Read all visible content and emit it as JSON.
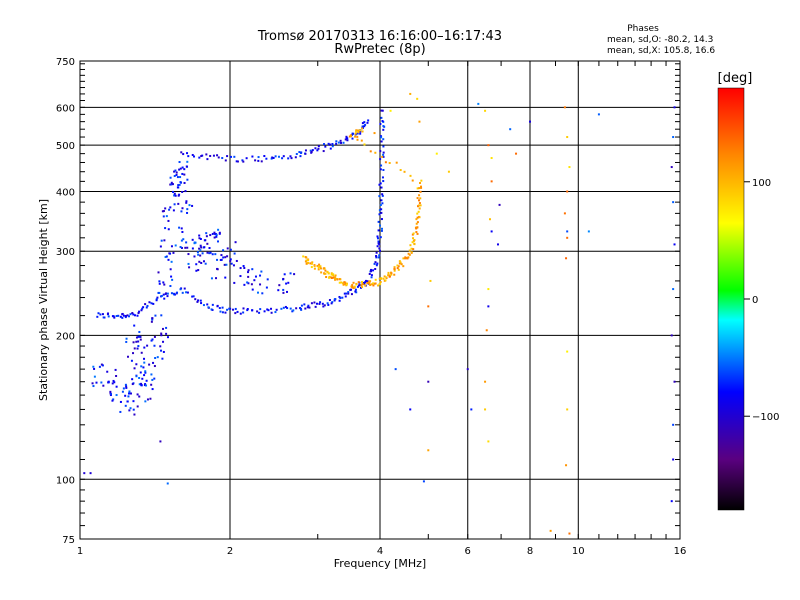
{
  "chart_data": {
    "type": "scatter",
    "title_line1": "Tromsø 20170313 16:16:00–16:17:43",
    "title_line2": "RwPretec (8p)",
    "xlabel": "Frequency [MHz]",
    "ylabel": "Stationary phase Virtual Height [km]",
    "x_scale": "log",
    "y_scale": "log",
    "xlim": [
      1,
      16
    ],
    "ylim": [
      75,
      750
    ],
    "x_ticks": [
      1,
      2,
      4,
      6,
      8,
      10,
      16
    ],
    "x_tick_labels": [
      "1",
      "2",
      "4",
      "6",
      "8",
      "10",
      "16"
    ],
    "y_ticks": [
      75,
      100,
      200,
      300,
      400,
      500,
      600,
      750
    ],
    "y_tick_labels": [
      "75",
      "100",
      "200",
      "300",
      "400",
      "500",
      "600",
      "750"
    ],
    "grid": true,
    "stats": {
      "heading": "Phases",
      "o_line": "mean, sd,O: -80.2, 14.3",
      "x_line": "mean, sd,X: 105.8, 16.6"
    },
    "colorbar": {
      "label": "[deg]",
      "range": [
        -180,
        180
      ],
      "ticks": [
        100,
        0,
        -100
      ],
      "tick_labels": [
        "100",
        "0",
        "−100"
      ]
    },
    "series": [
      {
        "mode": "O",
        "phase_deg": -80.2,
        "trace": [
          {
            "x": 1.08,
            "y": 220
          },
          {
            "x": 1.2,
            "y": 220
          },
          {
            "x": 1.3,
            "y": 222
          },
          {
            "x": 1.45,
            "y": 240
          },
          {
            "x": 1.6,
            "y": 250
          },
          {
            "x": 1.8,
            "y": 230
          },
          {
            "x": 2.0,
            "y": 225
          },
          {
            "x": 2.3,
            "y": 225
          },
          {
            "x": 2.7,
            "y": 228
          },
          {
            "x": 3.0,
            "y": 232
          },
          {
            "x": 3.3,
            "y": 238
          },
          {
            "x": 3.6,
            "y": 250
          },
          {
            "x": 3.8,
            "y": 262
          },
          {
            "x": 3.95,
            "y": 290
          },
          {
            "x": 4.0,
            "y": 330
          },
          {
            "x": 4.02,
            "y": 400
          },
          {
            "x": 4.04,
            "y": 500
          },
          {
            "x": 4.05,
            "y": 600
          },
          {
            "x": 1.6,
            "y": 480
          },
          {
            "x": 1.9,
            "y": 470
          },
          {
            "x": 2.3,
            "y": 468
          },
          {
            "x": 2.7,
            "y": 475
          },
          {
            "x": 3.0,
            "y": 490
          },
          {
            "x": 3.3,
            "y": 505
          },
          {
            "x": 3.6,
            "y": 530
          },
          {
            "x": 3.8,
            "y": 560
          }
        ],
        "cloud": [
          {
            "x": 1.28,
            "y": 200
          },
          {
            "x": 1.3,
            "y": 180
          },
          {
            "x": 1.32,
            "y": 160
          },
          {
            "x": 1.35,
            "y": 150
          },
          {
            "x": 1.38,
            "y": 170
          },
          {
            "x": 1.42,
            "y": 190
          },
          {
            "x": 1.45,
            "y": 210
          },
          {
            "x": 1.48,
            "y": 260
          },
          {
            "x": 1.5,
            "y": 300
          },
          {
            "x": 1.52,
            "y": 350
          },
          {
            "x": 1.55,
            "y": 400
          },
          {
            "x": 1.58,
            "y": 420
          },
          {
            "x": 1.6,
            "y": 440
          },
          {
            "x": 1.62,
            "y": 380
          },
          {
            "x": 1.65,
            "y": 320
          },
          {
            "x": 1.7,
            "y": 290
          },
          {
            "x": 1.75,
            "y": 300
          },
          {
            "x": 1.8,
            "y": 310
          },
          {
            "x": 1.9,
            "y": 280
          },
          {
            "x": 2.1,
            "y": 270
          },
          {
            "x": 2.3,
            "y": 260
          },
          {
            "x": 2.6,
            "y": 255
          },
          {
            "x": 1.25,
            "y": 145
          },
          {
            "x": 1.2,
            "y": 150
          },
          {
            "x": 1.15,
            "y": 160
          },
          {
            "x": 1.1,
            "y": 165
          },
          {
            "x": 1.85,
            "y": 320
          },
          {
            "x": 2.0,
            "y": 300
          }
        ],
        "scattered": [
          {
            "x": 1.02,
            "y": 103
          },
          {
            "x": 1.05,
            "y": 103
          },
          {
            "x": 1.5,
            "y": 98
          },
          {
            "x": 1.45,
            "y": 120
          },
          {
            "x": 4.3,
            "y": 170
          },
          {
            "x": 4.6,
            "y": 140
          },
          {
            "x": 4.9,
            "y": 99
          },
          {
            "x": 5.0,
            "y": 160
          },
          {
            "x": 6.0,
            "y": 170
          },
          {
            "x": 6.1,
            "y": 140
          },
          {
            "x": 6.6,
            "y": 230
          },
          {
            "x": 6.7,
            "y": 330
          },
          {
            "x": 6.9,
            "y": 310
          },
          {
            "x": 9.5,
            "y": 330
          },
          {
            "x": 10.5,
            "y": 330
          },
          {
            "x": 11.0,
            "y": 580
          },
          {
            "x": 15.4,
            "y": 90
          },
          {
            "x": 15.5,
            "y": 110
          },
          {
            "x": 15.5,
            "y": 130
          },
          {
            "x": 15.6,
            "y": 160
          },
          {
            "x": 15.4,
            "y": 200
          },
          {
            "x": 15.5,
            "y": 250
          },
          {
            "x": 15.6,
            "y": 310
          },
          {
            "x": 15.5,
            "y": 380
          },
          {
            "x": 15.4,
            "y": 450
          },
          {
            "x": 15.5,
            "y": 520
          },
          {
            "x": 15.6,
            "y": 600
          },
          {
            "x": 8.0,
            "y": 560
          },
          {
            "x": 6.3,
            "y": 610
          },
          {
            "x": 6.95,
            "y": 375
          },
          {
            "x": 7.3,
            "y": 540
          }
        ]
      },
      {
        "mode": "X",
        "phase_deg": 105.8,
        "trace": [
          {
            "x": 2.8,
            "y": 290
          },
          {
            "x": 2.95,
            "y": 280
          },
          {
            "x": 3.1,
            "y": 272
          },
          {
            "x": 3.2,
            "y": 265
          },
          {
            "x": 3.35,
            "y": 258
          },
          {
            "x": 3.55,
            "y": 255
          },
          {
            "x": 3.8,
            "y": 255
          },
          {
            "x": 4.0,
            "y": 260
          },
          {
            "x": 4.2,
            "y": 268
          },
          {
            "x": 4.4,
            "y": 280
          },
          {
            "x": 4.6,
            "y": 300
          },
          {
            "x": 4.72,
            "y": 330
          },
          {
            "x": 4.78,
            "y": 370
          },
          {
            "x": 4.8,
            "y": 420
          },
          {
            "x": 3.5,
            "y": 520
          },
          {
            "x": 3.7,
            "y": 540
          }
        ],
        "scattered": [
          {
            "x": 4.6,
            "y": 640
          },
          {
            "x": 4.75,
            "y": 625
          },
          {
            "x": 4.8,
            "y": 560
          },
          {
            "x": 5.2,
            "y": 480
          },
          {
            "x": 5.5,
            "y": 440
          },
          {
            "x": 5.05,
            "y": 260
          },
          {
            "x": 5.0,
            "y": 230
          },
          {
            "x": 5.0,
            "y": 115
          },
          {
            "x": 6.5,
            "y": 590
          },
          {
            "x": 6.6,
            "y": 500
          },
          {
            "x": 6.7,
            "y": 470
          },
          {
            "x": 6.7,
            "y": 420
          },
          {
            "x": 6.65,
            "y": 350
          },
          {
            "x": 6.6,
            "y": 250
          },
          {
            "x": 6.55,
            "y": 205
          },
          {
            "x": 6.5,
            "y": 160
          },
          {
            "x": 6.5,
            "y": 140
          },
          {
            "x": 6.6,
            "y": 120
          },
          {
            "x": 7.5,
            "y": 480
          },
          {
            "x": 9.4,
            "y": 600
          },
          {
            "x": 9.5,
            "y": 520
          },
          {
            "x": 9.6,
            "y": 450
          },
          {
            "x": 9.5,
            "y": 400
          },
          {
            "x": 9.4,
            "y": 360
          },
          {
            "x": 9.5,
            "y": 320
          },
          {
            "x": 9.45,
            "y": 290
          },
          {
            "x": 9.5,
            "y": 185
          },
          {
            "x": 9.5,
            "y": 140
          },
          {
            "x": 9.45,
            "y": 107
          },
          {
            "x": 8.8,
            "y": 78
          },
          {
            "x": 9.6,
            "y": 77
          },
          {
            "x": 4.2,
            "y": 590
          },
          {
            "x": 3.9,
            "y": 530
          }
        ]
      }
    ]
  }
}
